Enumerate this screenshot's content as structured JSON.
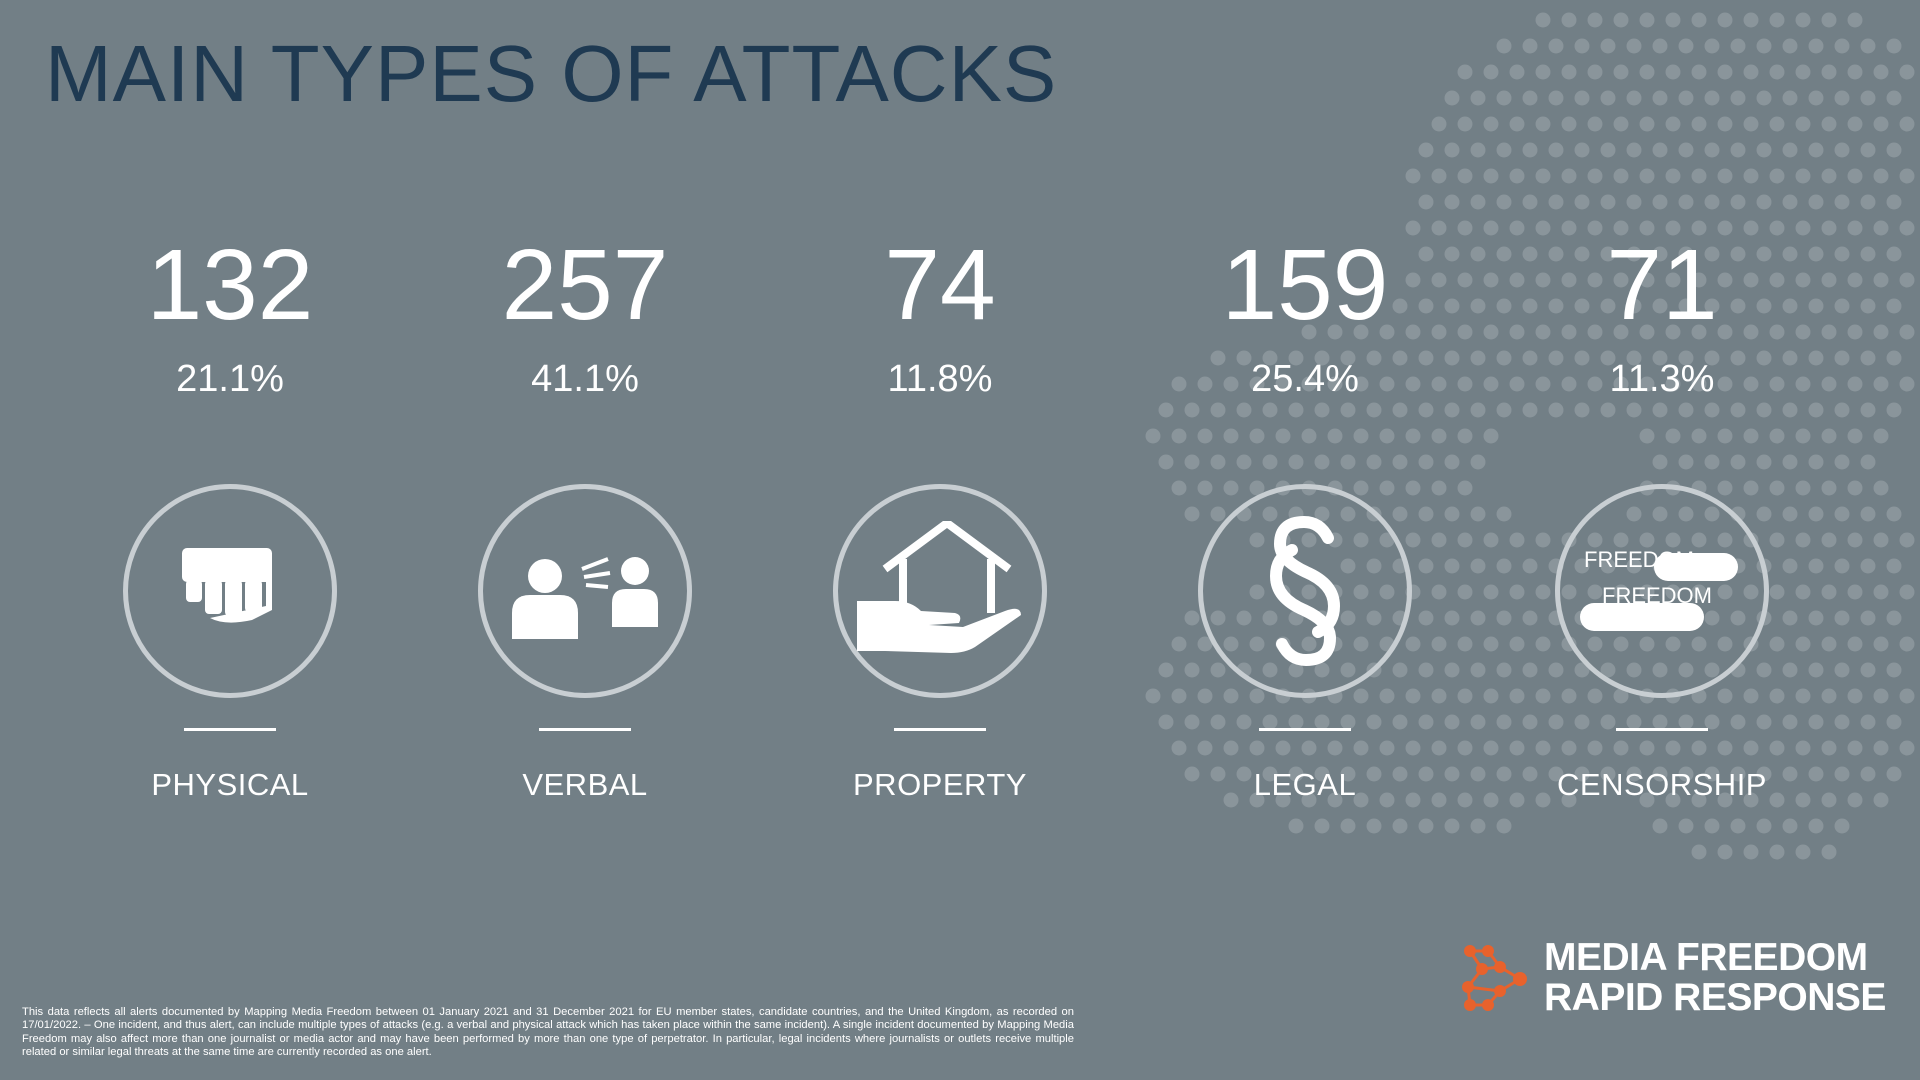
{
  "title": "MAIN TYPES OF ATTACKS",
  "categories": [
    {
      "count": "132",
      "percent": "21.1%",
      "label": "PHYSICAL",
      "icon": "fist-icon"
    },
    {
      "count": "257",
      "percent": "41.1%",
      "label": "VERBAL",
      "icon": "shouting-people-icon"
    },
    {
      "count": "74",
      "percent": "11.8%",
      "label": "PROPERTY",
      "icon": "house-in-hand-icon"
    },
    {
      "count": "159",
      "percent": "25.4%",
      "label": "LEGAL",
      "icon": "section-sign-icon"
    },
    {
      "count": "71",
      "percent": "11.3%",
      "label": "CENSORSHIP",
      "icon": "censored-text-icon"
    }
  ],
  "censorship_icon_text": [
    "FREEDOM",
    "FREEDOM"
  ],
  "footnote": "This data reflects all alerts documented by Mapping Media Freedom between 01 January 2021 and 31 December 2021 for EU member states, candidate countries, and the United Kingdom, as recorded on 17/01/2022. – One incident, and thus alert, can include multiple types of attacks (e.g. a verbal and physical attack which has taken place within the same incident). A single incident documented by Mapping Media Freedom may also affect more than one journalist or media actor and may have been performed by more than one type of perpetrator. In particular, legal incidents where journalists or outlets receive multiple related or similar legal threats at the same time are currently recorded as one alert.",
  "logo": {
    "line1": "MEDIA FREEDOM",
    "line2": "RAPID RESPONSE",
    "icon": "network-nodes-icon"
  },
  "colors": {
    "background": "#727f86",
    "title": "#1f3a52",
    "text": "#ffffff",
    "circle": "#c8ced2",
    "dots": "#8a959b",
    "logo_accent": "#e8622c"
  }
}
